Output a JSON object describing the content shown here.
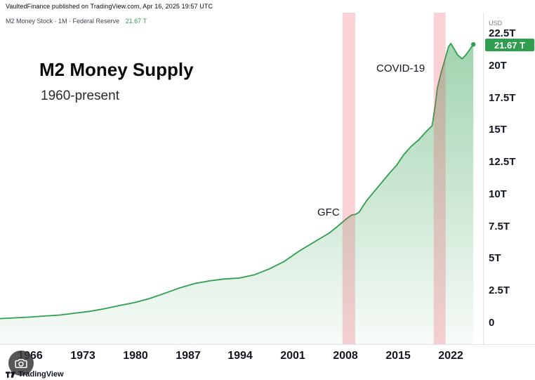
{
  "attribution": "VaultedFinance published on TradingView.com, Apr 16, 2025 19:57 UTC",
  "symbol_row": {
    "label": "M2 Money Stock · 1M · Federal Reserve",
    "value": "21.67 T"
  },
  "overlay": {
    "title": "M2 Money Supply",
    "subtitle": "1960-present"
  },
  "annotations": [
    "GFC",
    "COVID-19"
  ],
  "price_axis": {
    "currency": "USD",
    "ticks": [
      "22.5T",
      "20T",
      "17.5T",
      "15T",
      "12.5T",
      "10T",
      "7.5T",
      "5T",
      "2.5T",
      "0"
    ],
    "last_price_label": "21.67 T"
  },
  "time_axis": [
    "1966",
    "1973",
    "1980",
    "1987",
    "1994",
    "2001",
    "2008",
    "2015",
    "2022"
  ],
  "footer": {
    "brand": "TradingView"
  },
  "colors": {
    "line": "#2f9e4f",
    "area_top": "rgba(47,158,79,0.45)",
    "area_bottom": "rgba(47,158,79,0.04)",
    "band": "rgba(234,74,90,0.25)",
    "badge_bg": "#2f9e4f",
    "value_text": "#2f9e4f"
  },
  "chart_data": {
    "type": "area",
    "title": "M2 Money Supply",
    "subtitle": "1960-present",
    "series_name": "M2 Money Stock",
    "unit": "USD trillions",
    "grid": false,
    "legend_position": "none",
    "ylim": [
      0,
      22.5
    ],
    "y_ticks": [
      0,
      2.5,
      5,
      7.5,
      10,
      12.5,
      15,
      17.5,
      20,
      22.5
    ],
    "x_ticks": [
      1966,
      1973,
      1980,
      1987,
      1994,
      2001,
      2008,
      2015,
      2022
    ],
    "last_value": 21.67,
    "x": [
      1962,
      1964,
      1966,
      1968,
      1970,
      1972,
      1974,
      1976,
      1978,
      1980,
      1982,
      1984,
      1986,
      1988,
      1990,
      1992,
      1994,
      1996,
      1998,
      2000,
      2002,
      2004,
      2006,
      2007,
      2008,
      2008.5,
      2009,
      2009.5,
      2010,
      2011,
      2012,
      2013,
      2014,
      2015,
      2016,
      2017,
      2018,
      2019,
      2019.8,
      2020.2,
      2020.5,
      2021,
      2021.5,
      2022,
      2022.3,
      2022.7,
      2023.2,
      2023.8,
      2024.3,
      2024.8,
      2025.3
    ],
    "values": [
      0.35,
      0.41,
      0.47,
      0.55,
      0.63,
      0.77,
      0.91,
      1.12,
      1.37,
      1.6,
      1.91,
      2.31,
      2.73,
      3.07,
      3.28,
      3.43,
      3.5,
      3.75,
      4.21,
      4.79,
      5.6,
      6.3,
      6.99,
      7.45,
      7.95,
      8.18,
      8.4,
      8.45,
      8.6,
      9.5,
      10.2,
      10.9,
      11.6,
      12.25,
      13.1,
      13.75,
      14.25,
      14.9,
      15.35,
      16.9,
      18.3,
      19.5,
      20.5,
      21.5,
      21.74,
      21.35,
      20.85,
      20.55,
      20.85,
      21.25,
      21.67
    ],
    "bands": [
      {
        "label": "GFC",
        "from": 2007.8,
        "to": 2009.5
      },
      {
        "label": "COVID-19",
        "from": 2020.0,
        "to": 2021.6
      }
    ]
  }
}
